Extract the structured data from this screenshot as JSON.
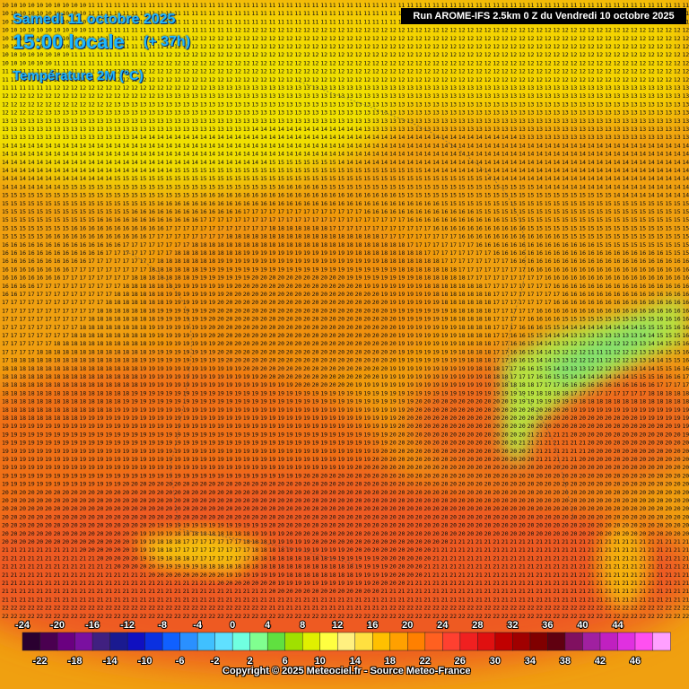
{
  "header": {
    "date": "Samedi 11 octobre 2025",
    "time": "15:00 locale",
    "offset": "(+ 37h)",
    "parameter": "Température 2M (°C)"
  },
  "run_banner": "Run AROME-IFS 2.5km 0 Z du Vendredi 10 octobre 2025",
  "copyright": "Copyright © 2025 Meteociel.fr - Source Meteo-France",
  "legend": {
    "top_labels": [
      "-24",
      "-20",
      "-16",
      "-12",
      "-8",
      "-4",
      "0",
      "4",
      "8",
      "12",
      "16",
      "20",
      "24",
      "28",
      "32",
      "36",
      "40",
      "44"
    ],
    "bottom_labels": [
      "-22",
      "-18",
      "-14",
      "-10",
      "-6",
      "-2",
      "2",
      "6",
      "10",
      "14",
      "18",
      "22",
      "26",
      "30",
      "34",
      "38",
      "42",
      "46"
    ],
    "colors": [
      "#2a0030",
      "#4a0050",
      "#6a0080",
      "#7a10a0",
      "#402080",
      "#1a1a90",
      "#1010c0",
      "#0a30e0",
      "#1060ff",
      "#2a90ff",
      "#40c0ff",
      "#60e0ff",
      "#70ffe0",
      "#80ff90",
      "#60e040",
      "#a0e000",
      "#e0f000",
      "#ffff40",
      "#fff080",
      "#ffe040",
      "#ffc000",
      "#ffa000",
      "#ff8000",
      "#ff6020",
      "#ff4030",
      "#f02020",
      "#e01010",
      "#c00000",
      "#a00000",
      "#800000",
      "#600010",
      "#801060",
      "#a020a0",
      "#c020c0",
      "#e030e0",
      "#ff50f0",
      "#ffa0ff"
    ]
  },
  "map": {
    "colors": {
      "sea_warm": "#ee6a1c",
      "land_hot": "#f08a10",
      "land_mid": "#f5a810",
      "land_mild": "#f8c010",
      "land_cool": "#f5d000",
      "alps_cold": "#80e070",
      "grid_text": "#111111"
    }
  }
}
